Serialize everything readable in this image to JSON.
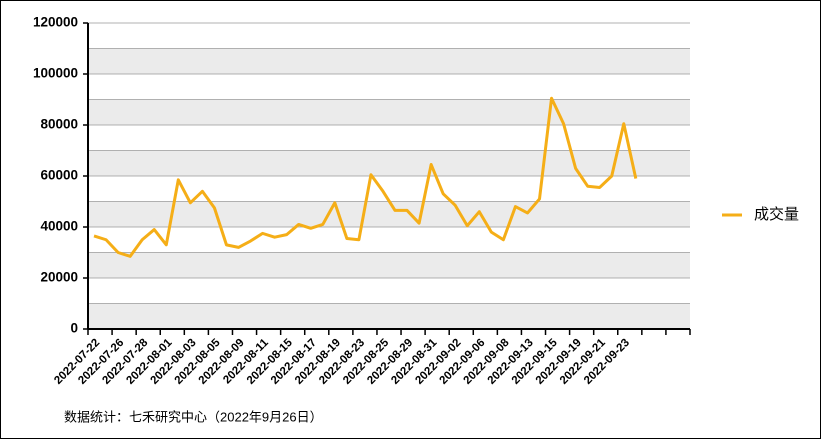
{
  "chart_data": {
    "type": "line",
    "categories": [
      "2022-07-22",
      null,
      "2022-07-26",
      null,
      "2022-07-28",
      null,
      "2022-08-01",
      null,
      "2022-08-03",
      null,
      "2022-08-05",
      null,
      "2022-08-09",
      null,
      "2022-08-11",
      null,
      "2022-08-15",
      null,
      "2022-08-17",
      null,
      "2022-08-19",
      null,
      "2022-08-23",
      null,
      "2022-08-25",
      null,
      "2022-08-29",
      null,
      "2022-08-31",
      null,
      "2022-09-02",
      null,
      "2022-09-06",
      null,
      "2022-09-08",
      null,
      "2022-09-13",
      null,
      "2022-09-15",
      null,
      "2022-09-19",
      null,
      "2022-09-21",
      null,
      "2022-09-23",
      null,
      null,
      null,
      null,
      null
    ],
    "series": [
      {
        "name": "成交量",
        "color": "#f5ae17",
        "values": [
          36500,
          35000,
          30000,
          28500,
          35000,
          39000,
          33000,
          58500,
          49500,
          54000,
          47500,
          33000,
          32000,
          34500,
          37500,
          36000,
          37000,
          41000,
          39500,
          41000,
          49500,
          35500,
          35000,
          60500,
          54000,
          46500,
          46500,
          41500,
          64500,
          53000,
          48500,
          40500,
          46000,
          38000,
          35000,
          48000,
          45500,
          51000,
          90500,
          80500,
          63000,
          56000,
          55500,
          60000,
          80500,
          59000,
          null,
          null,
          null,
          null
        ]
      }
    ],
    "ylim": [
      0,
      120000
    ],
    "yticks": [
      0,
      20000,
      40000,
      60000,
      80000,
      100000,
      120000
    ],
    "grid": true,
    "legend": "right",
    "footnote": "数据统计：七禾研究中心（2022年9月26日）"
  }
}
